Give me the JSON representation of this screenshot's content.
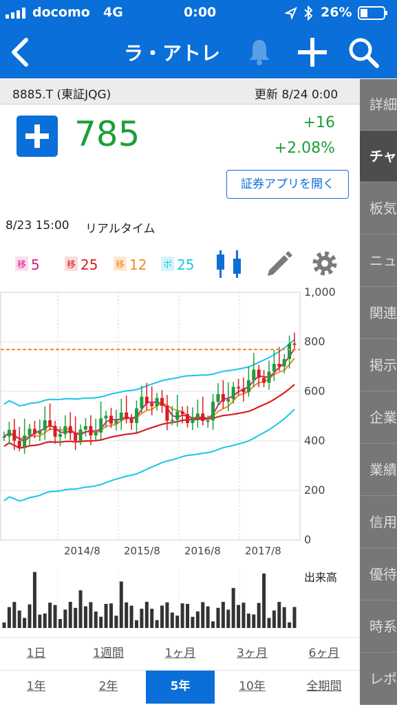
{
  "status_bar": {
    "carrier": "docomo",
    "network": "4G",
    "time": "0:00",
    "battery": "26%"
  },
  "nav": {
    "title": "ラ・アトレ"
  },
  "stock": {
    "code": "8885.T (東証JQG)",
    "updated": "更新  8/24 0:00",
    "price": "785",
    "change": "+16",
    "change_pct": "+2.08%",
    "open_app_button": "証券アプリを開く"
  },
  "realtime": {
    "datetime": "8/23 15:00",
    "label": "リアルタイム"
  },
  "legend": [
    {
      "badge": "移",
      "value": "5",
      "color": "#e0158f",
      "bg": "#fbdcef"
    },
    {
      "badge": "移",
      "value": "25",
      "color": "#d61f1f",
      "bg": "#fbdcdc"
    },
    {
      "badge": "移",
      "value": "12",
      "color": "#ef8a1c",
      "bg": "#fde8cf"
    },
    {
      "badge": "ボ",
      "value": "25",
      "color": "#19c4e6",
      "bg": "#d4f3fb"
    }
  ],
  "sidebar_tabs": [
    "詳細",
    "チャート",
    "板気配",
    "ニュース",
    "関連",
    "掲示板",
    "企業",
    "業績",
    "信用",
    "優待",
    "時系列",
    "レポート"
  ],
  "volume_label": "出来高",
  "chart_data": {
    "type": "candlestick",
    "y_ticks": [
      "1,000",
      "800",
      "600",
      "400",
      "200",
      "0"
    ],
    "x_ticks": [
      "2014/8",
      "2015/8",
      "2016/8",
      "2017/8"
    ],
    "ylim": [
      0,
      1000
    ],
    "last_price_line": 769,
    "colors": {
      "up": "#1e9e3a",
      "down": "#d61f1f",
      "ma5": "#e0158f",
      "ma25": "#d61f1f",
      "ma12": "#ef8a1c",
      "bollinger": "#19c4e6",
      "price_line": "#ef8a1c"
    }
  },
  "periods_row1": [
    "1日",
    "1週間",
    "1ヶ月",
    "3ヶ月",
    "6ヶ月"
  ],
  "periods_row2": [
    "1年",
    "2年",
    "5年",
    "10年",
    "全期間"
  ],
  "active_period": "5年"
}
